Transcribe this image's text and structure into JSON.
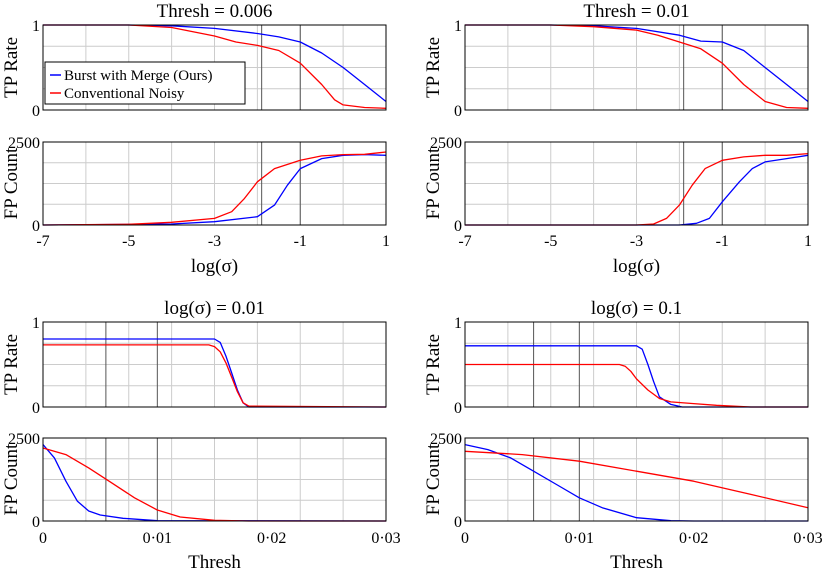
{
  "chart_data": [
    {
      "type": "line",
      "title": "Thresh = 0.006",
      "xlabel": "log(σ)",
      "x_scale": "log-sigma",
      "xlim": [
        -7,
        1
      ],
      "xticks": [
        "-7",
        "-5",
        "-3",
        "-1",
        "1"
      ],
      "grid": true,
      "vlines": [
        -1.9,
        -1
      ],
      "legend": {
        "placement": "left",
        "entries": [
          "Burst with Merge (Ours)",
          "Conventional Noisy"
        ]
      },
      "subplots": [
        {
          "ylabel": "TP Rate",
          "ylim": [
            0,
            1
          ],
          "yticks": [
            "0",
            "1"
          ],
          "series": [
            {
              "name": "Burst with Merge (Ours)",
              "color": "#0000ff",
              "x": [
                -7,
                -5,
                -4,
                -3,
                -2,
                -1.5,
                -1,
                -0.5,
                0,
                0.5,
                1
              ],
              "y": [
                1,
                1,
                0.99,
                0.96,
                0.9,
                0.86,
                0.8,
                0.67,
                0.5,
                0.3,
                0.1
              ]
            },
            {
              "name": "Conventional Noisy",
              "color": "#ff0000",
              "x": [
                -7,
                -5,
                -4,
                -3,
                -2.5,
                -2,
                -1.5,
                -1,
                -0.5,
                -0.2,
                0,
                0.5,
                1
              ],
              "y": [
                1,
                1,
                0.97,
                0.87,
                0.8,
                0.76,
                0.7,
                0.55,
                0.3,
                0.12,
                0.06,
                0.03,
                0.02
              ]
            }
          ]
        },
        {
          "ylabel": "FP Count",
          "ylim": [
            0,
            2500
          ],
          "yticks": [
            "0",
            "2500"
          ],
          "series": [
            {
              "name": "Burst with Merge (Ours)",
              "color": "#0000ff",
              "x": [
                -7,
                -4,
                -3,
                -2,
                -1.6,
                -1.3,
                -1,
                -0.5,
                0,
                0.5,
                1
              ],
              "y": [
                0,
                30,
                100,
                250,
                600,
                1200,
                1700,
                2000,
                2100,
                2120,
                2100
              ]
            },
            {
              "name": "Conventional Noisy",
              "color": "#ff0000",
              "x": [
                -7,
                -5,
                -4,
                -3,
                -2.6,
                -2.3,
                -2,
                -1.6,
                -1,
                -0.5,
                0,
                0.5,
                1
              ],
              "y": [
                0,
                20,
                80,
                200,
                400,
                800,
                1300,
                1700,
                1950,
                2080,
                2120,
                2130,
                2200
              ]
            }
          ]
        }
      ]
    },
    {
      "type": "line",
      "title": "Thresh = 0.01",
      "xlabel": "log(σ)",
      "x_scale": "log-sigma",
      "xlim": [
        -7,
        1
      ],
      "xticks": [
        "-7",
        "-5",
        "-3",
        "-1",
        "1"
      ],
      "grid": true,
      "vlines": [
        -1.9,
        -1
      ],
      "subplots": [
        {
          "ylabel": "TP Rate",
          "ylim": [
            0,
            1
          ],
          "yticks": [
            "0",
            "1"
          ],
          "series": [
            {
              "name": "Burst with Merge (Ours)",
              "color": "#0000ff",
              "x": [
                -7,
                -5,
                -4,
                -3,
                -2,
                -1.5,
                -1,
                -0.5,
                0,
                0.5,
                1
              ],
              "y": [
                1,
                1,
                0.99,
                0.96,
                0.88,
                0.81,
                0.8,
                0.7,
                0.5,
                0.3,
                0.1
              ]
            },
            {
              "name": "Conventional Noisy",
              "color": "#ff0000",
              "x": [
                -7,
                -5,
                -4,
                -3,
                -2.5,
                -2,
                -1.5,
                -1,
                -0.5,
                0,
                0.5,
                1
              ],
              "y": [
                1,
                1,
                0.98,
                0.94,
                0.88,
                0.8,
                0.72,
                0.55,
                0.3,
                0.1,
                0.03,
                0.02
              ]
            }
          ]
        },
        {
          "ylabel": "FP Count",
          "ylim": [
            0,
            2500
          ],
          "yticks": [
            "0",
            "2500"
          ],
          "series": [
            {
              "name": "Burst with Merge (Ours)",
              "color": "#0000ff",
              "x": [
                -7,
                -2,
                -1.6,
                -1.3,
                -1,
                -0.6,
                -0.3,
                0,
                0.5,
                1
              ],
              "y": [
                0,
                0,
                50,
                200,
                700,
                1300,
                1700,
                1900,
                2000,
                2100
              ]
            },
            {
              "name": "Conventional Noisy",
              "color": "#ff0000",
              "x": [
                -7,
                -3,
                -2.6,
                -2.3,
                -2,
                -1.7,
                -1.4,
                -1,
                -0.5,
                0,
                0.5,
                1
              ],
              "y": [
                0,
                0,
                30,
                200,
                600,
                1200,
                1700,
                1950,
                2050,
                2100,
                2100,
                2150
              ]
            }
          ]
        }
      ]
    },
    {
      "type": "line",
      "title": "log(σ) = 0.01",
      "xlabel": "Thresh",
      "xlim": [
        0,
        0.03
      ],
      "xticks": [
        "0",
        "0·01",
        "0·02",
        "0·03"
      ],
      "grid": true,
      "vlines": [
        0.0055,
        0.01
      ],
      "subplots": [
        {
          "ylabel": "TP Rate",
          "ylim": [
            0,
            1
          ],
          "yticks": [
            "0",
            "1"
          ],
          "series": [
            {
              "name": "Burst with Merge (Ours)",
              "color": "#0000ff",
              "x": [
                0,
                0.015,
                0.0155,
                0.016,
                0.0165,
                0.017,
                0.0175,
                0.018,
                0.03
              ],
              "y": [
                0.8,
                0.8,
                0.76,
                0.6,
                0.4,
                0.2,
                0.05,
                0,
                0
              ]
            },
            {
              "name": "Conventional Noisy",
              "color": "#ff0000",
              "x": [
                0,
                0.0145,
                0.015,
                0.0155,
                0.016,
                0.0165,
                0.017,
                0.0175,
                0.018,
                0.03
              ],
              "y": [
                0.73,
                0.73,
                0.71,
                0.65,
                0.52,
                0.35,
                0.18,
                0.05,
                0.01,
                0
              ]
            }
          ]
        },
        {
          "ylabel": "FP Count",
          "ylim": [
            0,
            2500
          ],
          "yticks": [
            "0",
            "2500"
          ],
          "series": [
            {
              "name": "Burst with Merge (Ours)",
              "color": "#0000ff",
              "x": [
                0,
                0.001,
                0.002,
                0.003,
                0.004,
                0.005,
                0.007,
                0.01,
                0.03
              ],
              "y": [
                2300,
                1900,
                1200,
                600,
                300,
                180,
                80,
                10,
                0
              ]
            },
            {
              "name": "Conventional Noisy",
              "color": "#ff0000",
              "x": [
                0,
                0.002,
                0.004,
                0.006,
                0.008,
                0.01,
                0.012,
                0.015,
                0.018,
                0.03
              ],
              "y": [
                2200,
                2000,
                1600,
                1150,
                700,
                330,
                120,
                20,
                0,
                0
              ]
            }
          ]
        }
      ]
    },
    {
      "type": "line",
      "title": "log(σ) = 0.1",
      "xlabel": "Thresh",
      "xlim": [
        0,
        0.03
      ],
      "xticks": [
        "0",
        "0·01",
        "0·02",
        "0·03"
      ],
      "grid": true,
      "vlines": [
        0.006,
        0.01
      ],
      "subplots": [
        {
          "ylabel": "TP Rate",
          "ylim": [
            0,
            1
          ],
          "yticks": [
            "0",
            "1"
          ],
          "series": [
            {
              "name": "Burst with Merge (Ours)",
              "color": "#0000ff",
              "x": [
                0,
                0.015,
                0.0155,
                0.016,
                0.0165,
                0.017,
                0.018,
                0.019,
                0.03
              ],
              "y": [
                0.72,
                0.72,
                0.68,
                0.5,
                0.3,
                0.12,
                0.03,
                0,
                0
              ]
            },
            {
              "name": "Conventional Noisy",
              "color": "#ff0000",
              "x": [
                0,
                0.0135,
                0.014,
                0.0145,
                0.015,
                0.016,
                0.017,
                0.018,
                0.02,
                0.022,
                0.025,
                0.03
              ],
              "y": [
                0.5,
                0.5,
                0.48,
                0.42,
                0.33,
                0.2,
                0.1,
                0.06,
                0.04,
                0.02,
                0,
                0
              ]
            }
          ]
        },
        {
          "ylabel": "FP Count",
          "ylim": [
            0,
            2500
          ],
          "yticks": [
            "0",
            "2500"
          ],
          "series": [
            {
              "name": "Burst with Merge (Ours)",
              "color": "#0000ff",
              "x": [
                0,
                0.002,
                0.004,
                0.006,
                0.008,
                0.01,
                0.012,
                0.015,
                0.018,
                0.02,
                0.03
              ],
              "y": [
                2300,
                2150,
                1900,
                1500,
                1100,
                700,
                400,
                100,
                10,
                0,
                0
              ]
            },
            {
              "name": "Conventional Noisy",
              "color": "#ff0000",
              "x": [
                0,
                0.005,
                0.01,
                0.015,
                0.02,
                0.025,
                0.03
              ],
              "y": [
                2100,
                2000,
                1800,
                1500,
                1200,
                800,
                400
              ]
            }
          ]
        }
      ]
    }
  ]
}
